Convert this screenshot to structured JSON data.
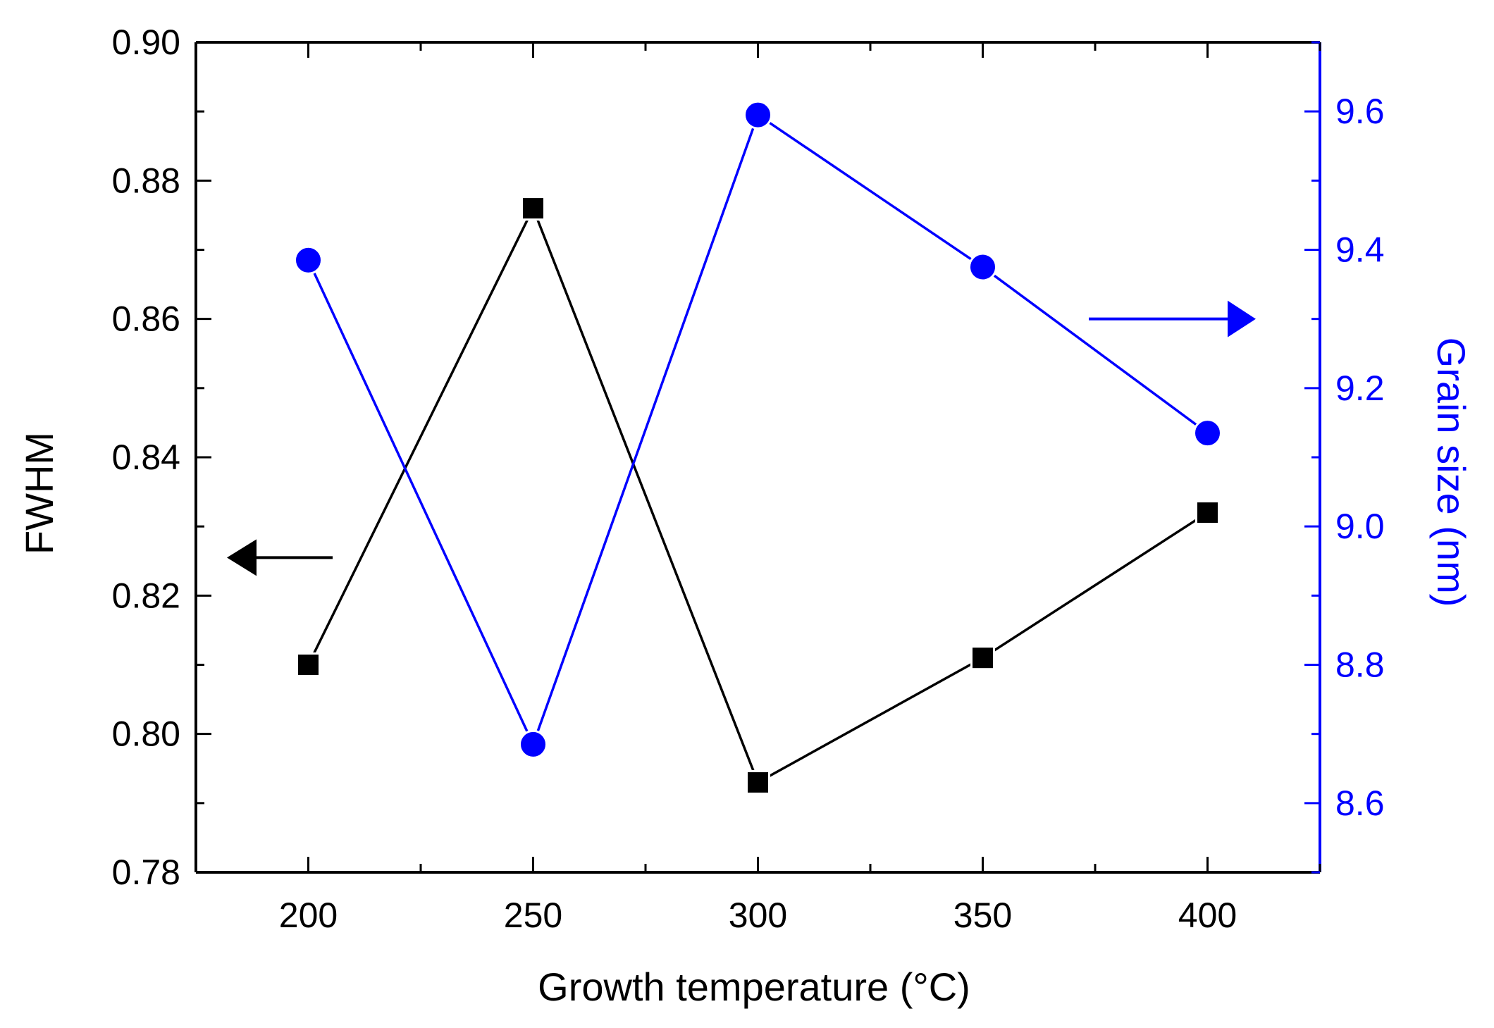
{
  "chart_data": {
    "type": "line",
    "title": "",
    "xlabel": "Growth temperature (°C)",
    "ylabel": "FWHM",
    "y2label": "Grain size (nm)",
    "xlim": [
      175,
      425
    ],
    "ylim": [
      0.78,
      0.9
    ],
    "y2lim": [
      8.5,
      9.7
    ],
    "x_ticks": [
      "200",
      "250",
      "300",
      "350",
      "400"
    ],
    "x_tick_values": [
      200,
      250,
      300,
      350,
      400
    ],
    "y_ticks": [
      "0.78",
      "0.80",
      "0.82",
      "0.84",
      "0.86",
      "0.88",
      "0.90"
    ],
    "y_tick_values": [
      0.78,
      0.8,
      0.82,
      0.84,
      0.86,
      0.88,
      0.9
    ],
    "y2_ticks": [
      "8.6",
      "8.8",
      "9.0",
      "9.2",
      "9.4",
      "9.6"
    ],
    "y2_tick_values": [
      8.6,
      8.8,
      9.0,
      9.2,
      9.4,
      9.6
    ],
    "x": [
      200,
      250,
      300,
      350,
      400
    ],
    "series": [
      {
        "name": "FWHM",
        "axis": "left",
        "marker": "square",
        "color": "#000000",
        "values": [
          0.81,
          0.876,
          0.793,
          0.811,
          0.832
        ]
      },
      {
        "name": "Grain size",
        "axis": "right",
        "marker": "circle",
        "color": "#0000ff",
        "values": [
          9.385,
          8.685,
          9.595,
          9.375,
          9.135
        ]
      }
    ],
    "annotations": [
      {
        "text": "",
        "kind": "arrow-left",
        "series": "FWHM",
        "color": "#000000"
      },
      {
        "text": "",
        "kind": "arrow-right",
        "series": "Grain size",
        "color": "#0000ff"
      }
    ],
    "grid": false,
    "legend": "none"
  }
}
